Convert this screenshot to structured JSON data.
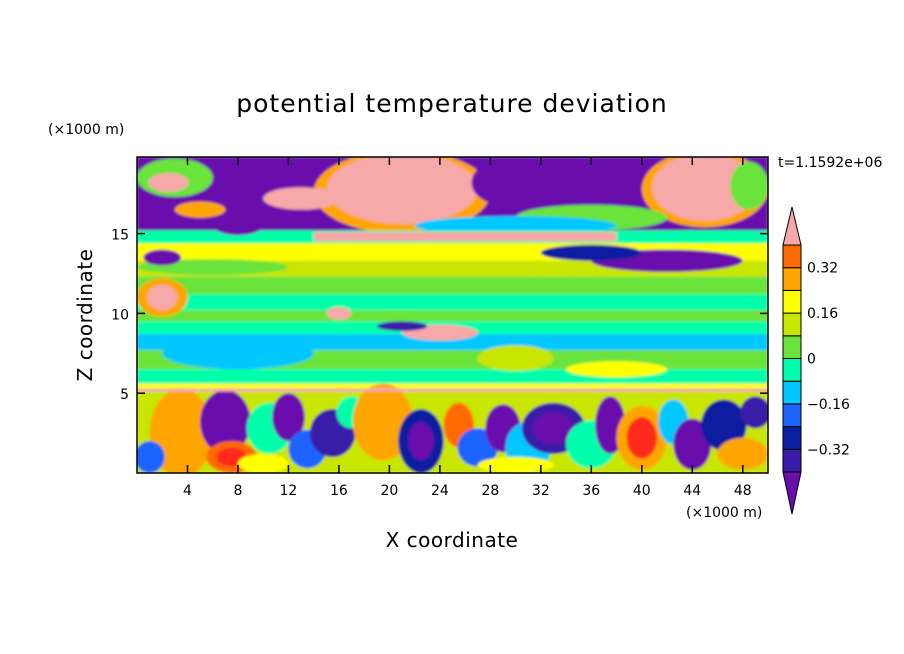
{
  "chart_data": {
    "type": "heatmap",
    "title": "potential temperature deviation",
    "xlabel": "X coordinate",
    "ylabel": "Z coordinate",
    "x_unit": "(×1000 m)",
    "y_unit": "(×1000 m)",
    "time_label": "t=1.1592e+06",
    "xlim": [
      0,
      50
    ],
    "ylim": [
      0,
      19.8
    ],
    "x_ticks": [
      4,
      8,
      12,
      16,
      20,
      24,
      28,
      32,
      36,
      40,
      44,
      48
    ],
    "y_ticks": [
      5,
      10,
      15
    ],
    "colorbar": {
      "levels": [
        -0.4,
        -0.32,
        -0.24,
        -0.16,
        -0.08,
        0,
        0.08,
        0.16,
        0.24,
        0.32,
        0.4
      ],
      "tick_labels": [
        "0.32",
        "0.16",
        "0",
        "−0.16",
        "−0.32"
      ],
      "tick_values": [
        0.32,
        0.16,
        0,
        -0.16,
        -0.32
      ],
      "colors": [
        "#6a0dad",
        "#3a1aa8",
        "#0a1ea0",
        "#1e64ff",
        "#00c8ff",
        "#00ffaa",
        "#6be33a",
        "#c8e600",
        "#ffff00",
        "#ffa500",
        "#ff6a00",
        "#ff2a1a",
        "#f7a8a8"
      ],
      "extend": "both"
    },
    "grid": false
  }
}
